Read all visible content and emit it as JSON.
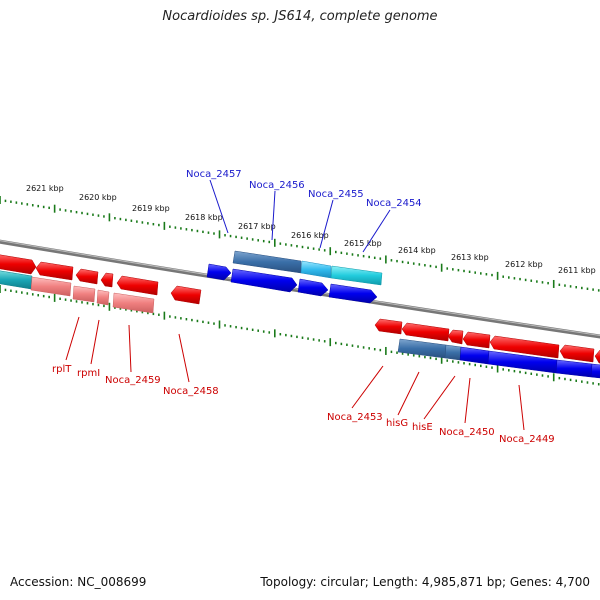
{
  "title": "Nocardioides sp. JS614, complete genome",
  "accession_text": "Accession: NC_008699",
  "info_text": "Topology: circular; Length: 4,985,871 bp; Genes: 4,700",
  "colors": {
    "plus_strand": "#0000ee",
    "plus_strand_alt": "#3a6fa8",
    "plus_strand_light": "#22ccdd",
    "minus_strand": "#ee0000",
    "minus_strand_light": "#f08080",
    "ticks": "#1a7a1a",
    "backbone": "#888888"
  },
  "scale": {
    "unit": "kbp",
    "labels": [
      "2621 kbp",
      "2620 kbp",
      "2619 kbp",
      "2618 kbp",
      "2617 kbp",
      "2616 kbp",
      "2615 kbp",
      "2614 kbp",
      "2613 kbp",
      "2612 kbp",
      "2611 kbp"
    ]
  },
  "top_gene_labels": [
    "Noca_2457",
    "Noca_2456",
    "Noca_2455",
    "Noca_2454"
  ],
  "bottom_left_gene_labels": [
    "rplT",
    "rpmI",
    "Noca_2459",
    "Noca_2458"
  ],
  "bottom_right_gene_labels": [
    "Noca_2453",
    "hisG",
    "hisE",
    "Noca_2450",
    "Noca_2449"
  ]
}
